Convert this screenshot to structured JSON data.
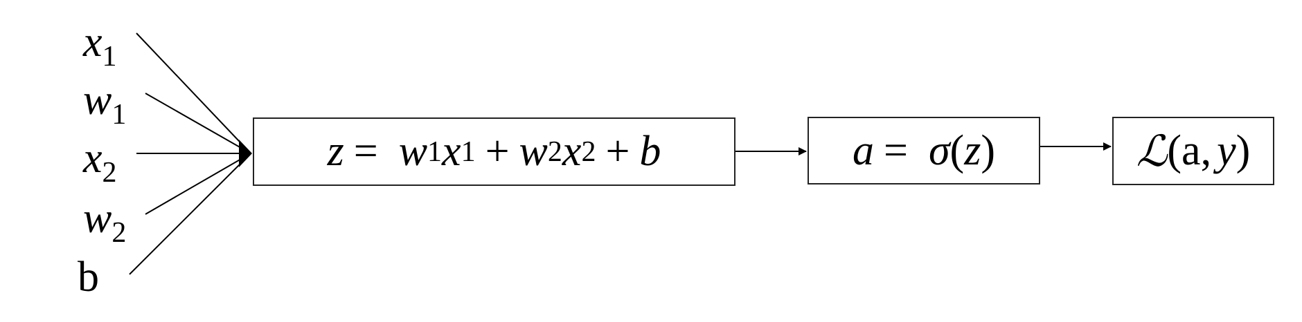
{
  "inputs": {
    "x1": {
      "symbol": "x",
      "sub": "1"
    },
    "w1": {
      "symbol": "w",
      "sub": "1"
    },
    "x2": {
      "symbol": "x",
      "sub": "2"
    },
    "w2": {
      "symbol": "w",
      "sub": "2"
    },
    "b": {
      "symbol": "b"
    }
  },
  "linear_box": {
    "z": "z",
    "eq": "=",
    "w1": "w",
    "w1_sub": "1",
    "x1": "x",
    "x1_sub": "1",
    "plus1": "+",
    "w2": "w",
    "w2_sub": "2",
    "x2": "x",
    "x2_sub": "2",
    "plus2": "+",
    "b": "b"
  },
  "activation_box": {
    "a": "a",
    "eq": "=",
    "sigma": "σ",
    "open": "(",
    "z": "z",
    "close": ")"
  },
  "loss_box": {
    "L": "ℒ",
    "open": "(",
    "a": "a",
    "comma": ",",
    "y": "y",
    "close": ")"
  }
}
